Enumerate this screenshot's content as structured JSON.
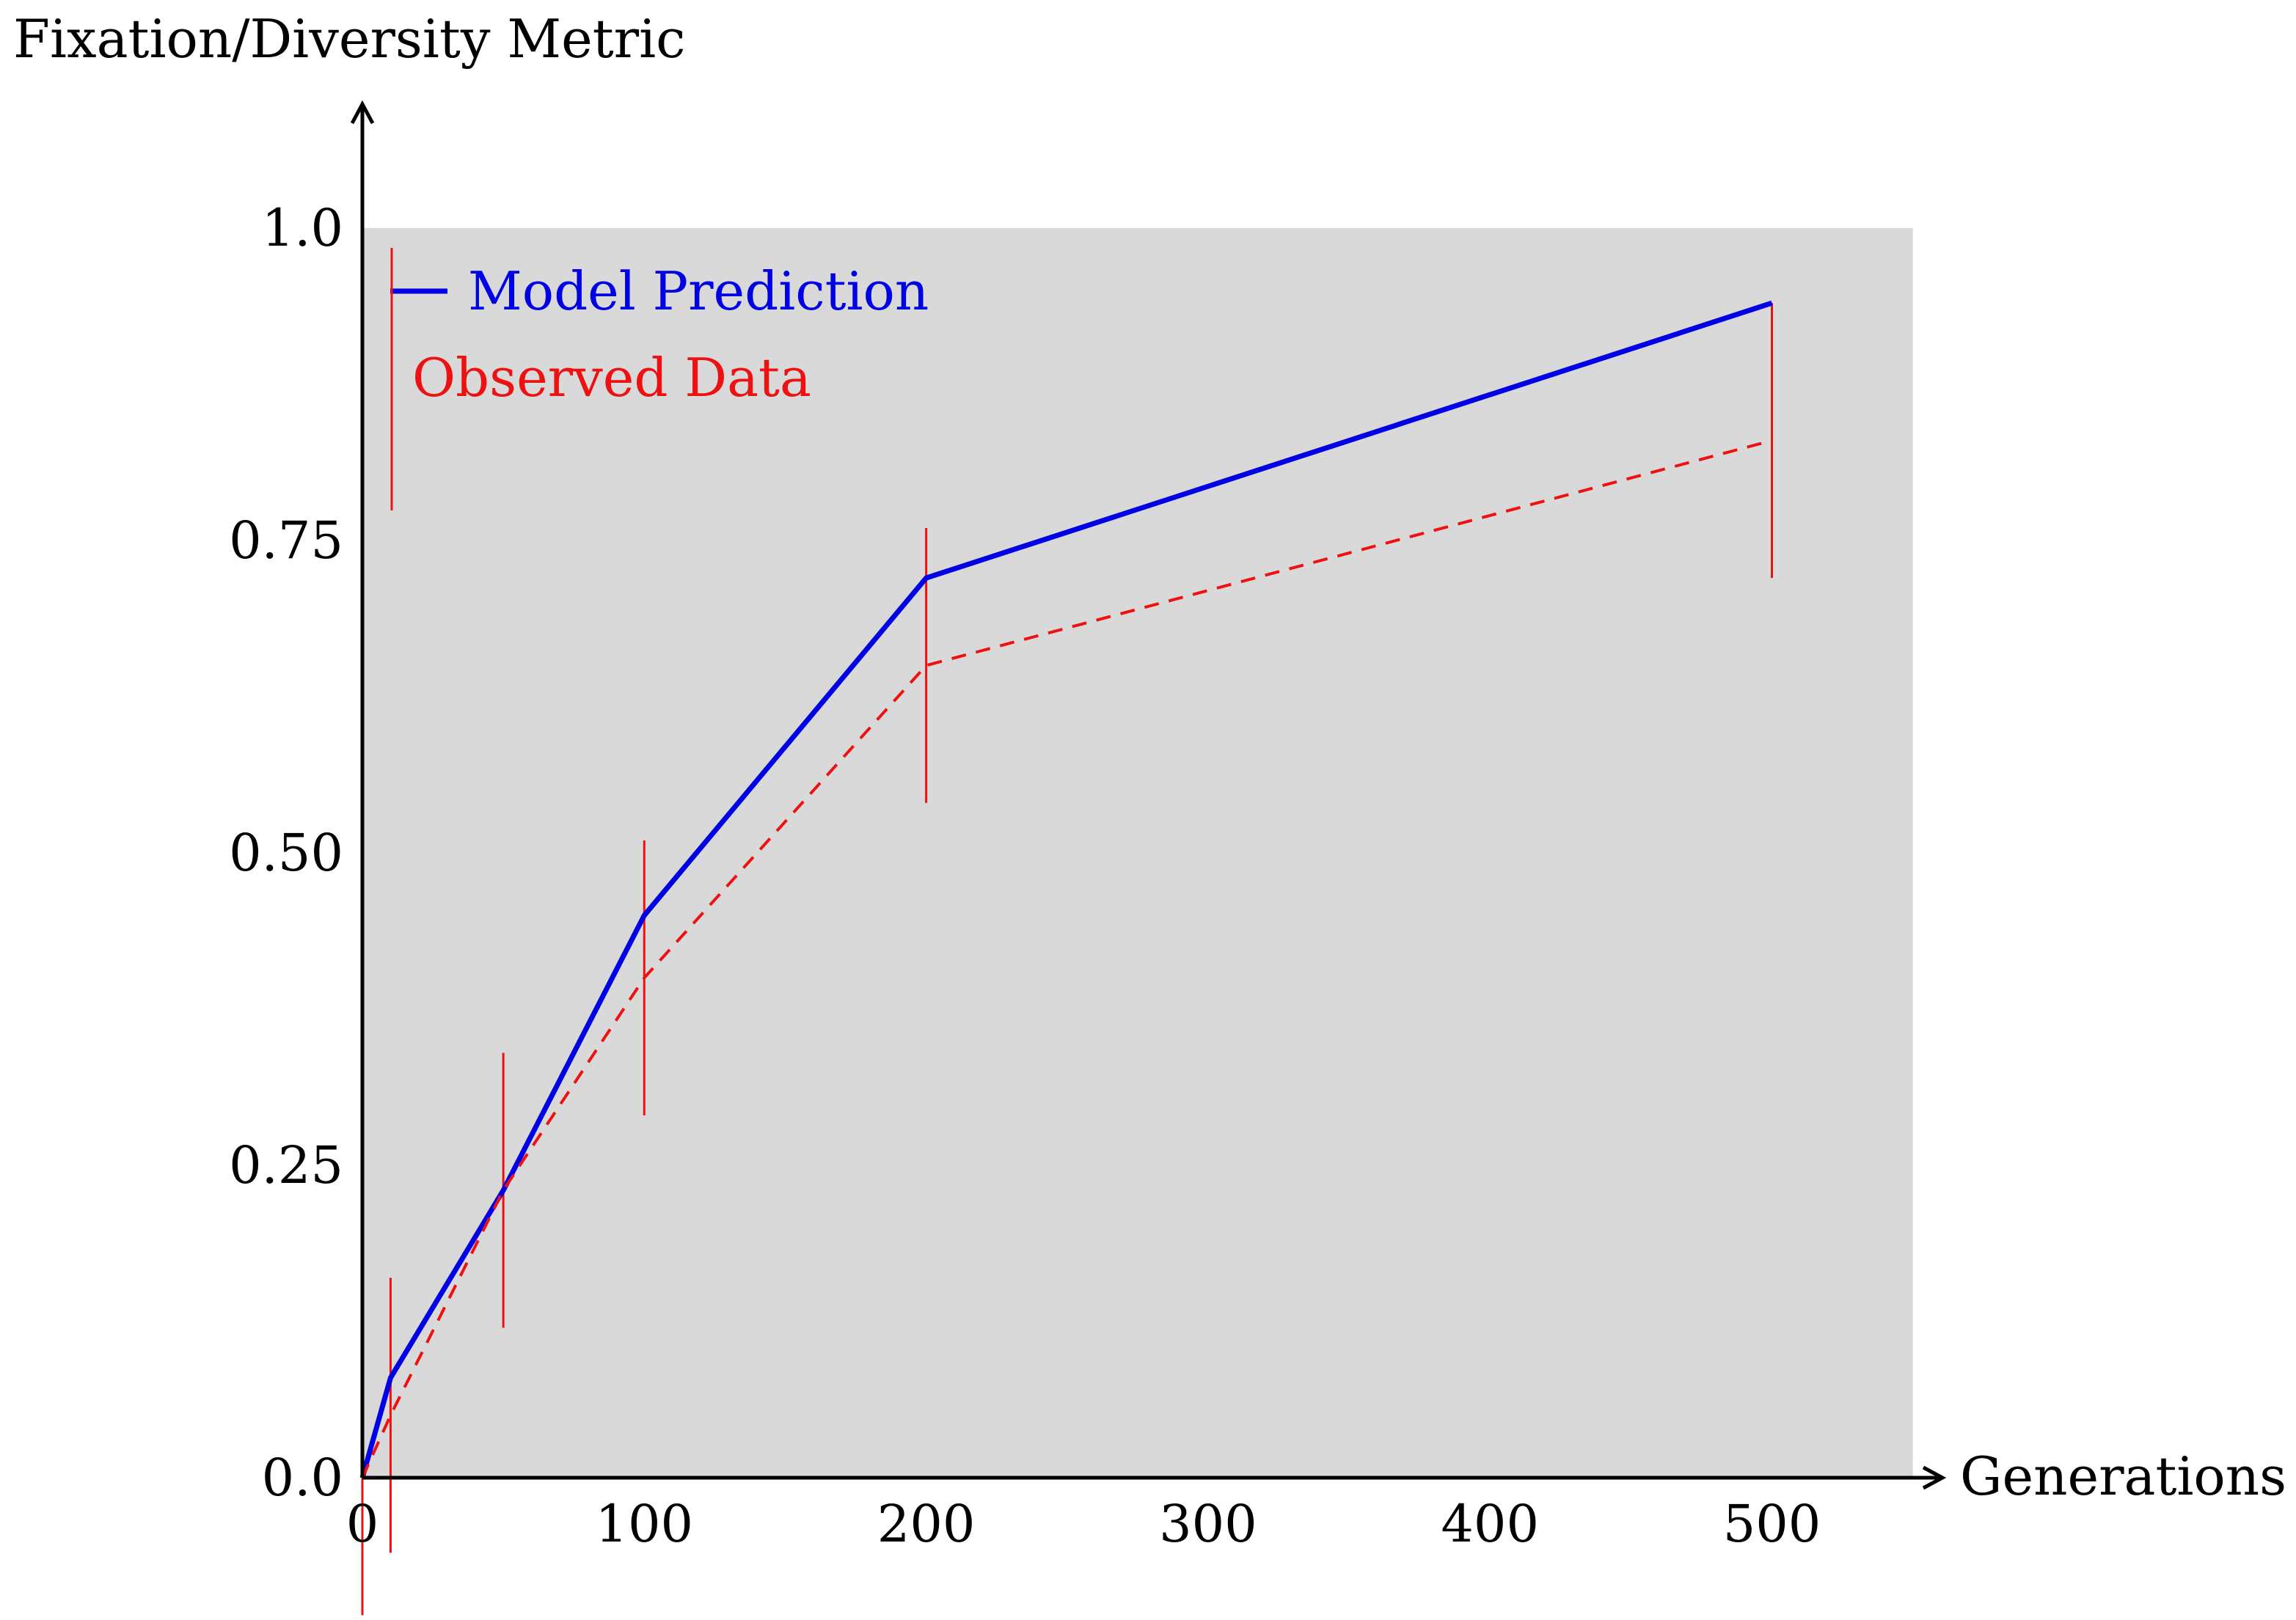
{
  "chart_data": {
    "type": "line",
    "title": "",
    "xlabel": "Generations",
    "ylabel": "Fixation/Diversity Metric",
    "xlim": [
      0,
      550
    ],
    "ylim": [
      0,
      1.0
    ],
    "x_ticks": [
      0,
      100,
      200,
      300,
      400,
      500
    ],
    "x_tick_labels": [
      "0",
      "100",
      "200",
      "300",
      "400",
      "500"
    ],
    "y_ticks": [
      0,
      0.25,
      0.5,
      0.75,
      1.0
    ],
    "y_tick_labels": [
      "0.0",
      "0.25",
      "0.50",
      "0.75",
      "1.0"
    ],
    "grid": false,
    "background_color": "#d9d9d9",
    "legend_position": "top-left",
    "series": [
      {
        "name": "Model Prediction",
        "color": "#0000e6",
        "style": "solid",
        "x": [
          0,
          10,
          50,
          100,
          200,
          500
        ],
        "y": [
          0.0,
          0.08,
          0.23,
          0.45,
          0.72,
          0.94
        ]
      },
      {
        "name": "Observed Data",
        "color": "#ee1111",
        "style": "dashed",
        "x": [
          0,
          10,
          50,
          100,
          200,
          500
        ],
        "y": [
          0.0,
          0.05,
          0.23,
          0.4,
          0.65,
          0.83
        ],
        "error": [
          0.11,
          0.11,
          0.11,
          0.11,
          0.11,
          0.11
        ]
      }
    ]
  }
}
